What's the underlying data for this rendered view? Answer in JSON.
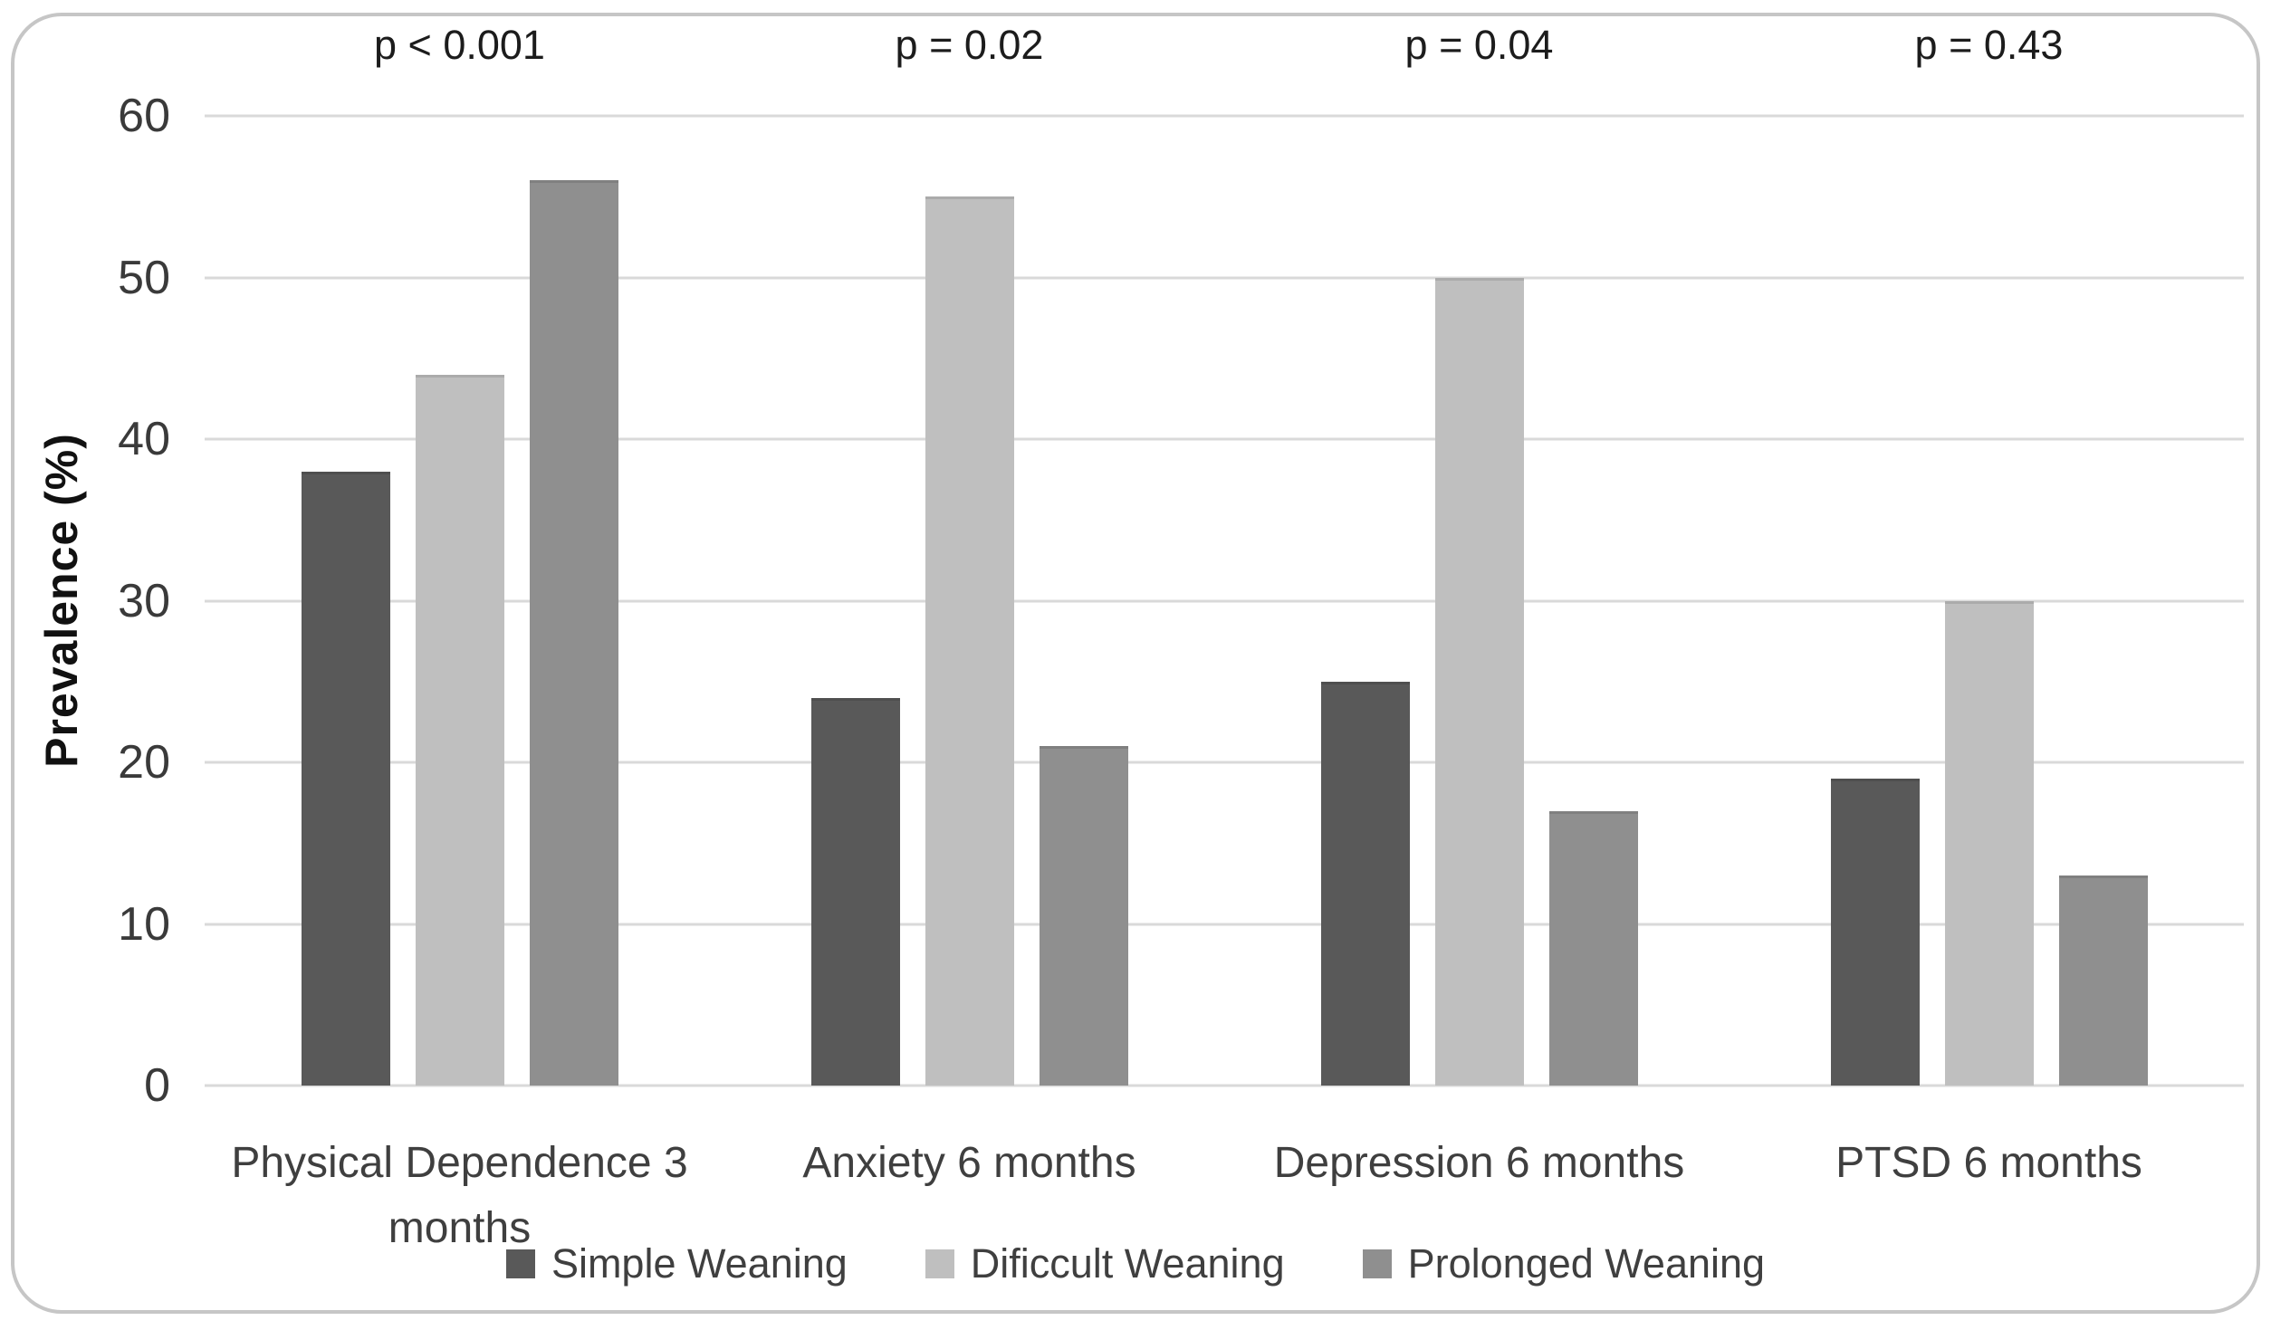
{
  "chart_data": {
    "type": "bar",
    "title": "",
    "xlabel": "",
    "ylabel": "Prevalence (%)",
    "ylim": [
      0,
      60
    ],
    "yticks": [
      0,
      10,
      20,
      30,
      40,
      50,
      60
    ],
    "grid": true,
    "legend_position": "bottom",
    "categories": [
      "Physical Dependence 3 months",
      "Anxiety 6 months",
      "Depression 6 months",
      "PTSD 6 months"
    ],
    "p_values": [
      "p < 0.001",
      "p = 0.02",
      "p = 0.04",
      "p = 0.43"
    ],
    "series": [
      {
        "name": "Simple Weaning",
        "color": "#595959",
        "values": [
          38,
          24,
          25,
          19
        ]
      },
      {
        "name": "Dificcult Weaning",
        "color": "#bfbfbf",
        "values": [
          44,
          55,
          50,
          30
        ]
      },
      {
        "name": "Prolonged Weaning",
        "color": "#8f8f8f",
        "values": [
          56,
          21,
          17,
          13
        ]
      }
    ],
    "colors": {
      "gridline": "#d9d9d9",
      "card_border": "#c6c6c6",
      "tick_text": "#3a3a3a",
      "label_text": "#3f3f3f",
      "annotation_text": "#1c1c1c"
    }
  }
}
